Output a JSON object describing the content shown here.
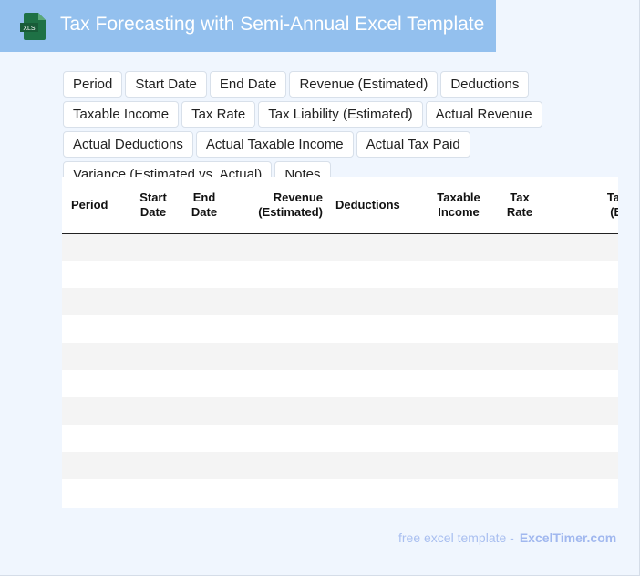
{
  "header": {
    "title": "Tax Forecasting with Semi-Annual Excel Template",
    "icon": "xls-file-icon",
    "logo_text": "XLS"
  },
  "chips": [
    "Period",
    "Start Date",
    "End Date",
    "Revenue (Estimated)",
    "Deductions",
    "Taxable Income",
    "Tax Rate",
    "Tax Liability (Estimated)",
    "Actual Revenue",
    "Actual Deductions",
    "Actual Taxable Income",
    "Actual Tax Paid",
    "Variance (Estimated vs. Actual)",
    "Notes"
  ],
  "table": {
    "columns": [
      "Period",
      "Start Date",
      "End Date",
      "Revenue (Estimated)",
      "Deductions",
      "Taxable Income",
      "Tax Rate",
      "Tax Liability (Estimated)"
    ],
    "row_count": 10
  },
  "footer": {
    "text": "free excel template -",
    "brand": "ExcelTimer.com"
  },
  "colors": {
    "header_bg": "#93c0ee",
    "page_bg": "#f0f6fe",
    "stripe": "#f4f4f4",
    "excel_green": "#1e7145"
  }
}
